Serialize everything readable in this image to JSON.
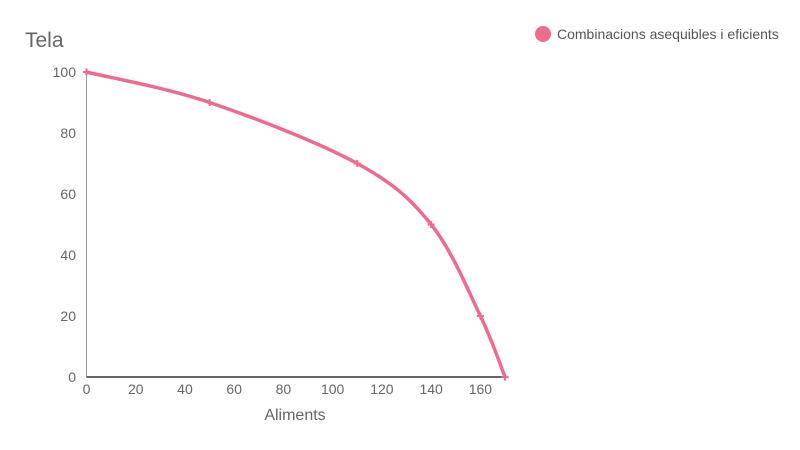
{
  "chart_data": {
    "type": "line",
    "xlabel": "Aliments",
    "ylabel": "Tela",
    "xlim": [
      0,
      170
    ],
    "ylim": [
      0,
      100
    ],
    "x_ticks": [
      0,
      20,
      40,
      60,
      80,
      100,
      120,
      140,
      160
    ],
    "y_ticks": [
      0,
      20,
      40,
      60,
      80,
      100
    ],
    "x_tick_labels": [
      "0",
      "20",
      "40",
      "60",
      "80",
      "100",
      "120",
      "140",
      "160"
    ],
    "y_tick_labels": [
      "0",
      "20",
      "40",
      "60",
      "80",
      "100"
    ],
    "grid": false,
    "legend_position": "top-right",
    "series": [
      {
        "name": "Combinacions asequibles i eficients",
        "color": "#f06a90",
        "marker": "cross",
        "smooth": true,
        "x": [
          0,
          50,
          110,
          140,
          160,
          170
        ],
        "y": [
          100,
          90,
          70,
          50,
          20,
          0
        ]
      }
    ]
  }
}
